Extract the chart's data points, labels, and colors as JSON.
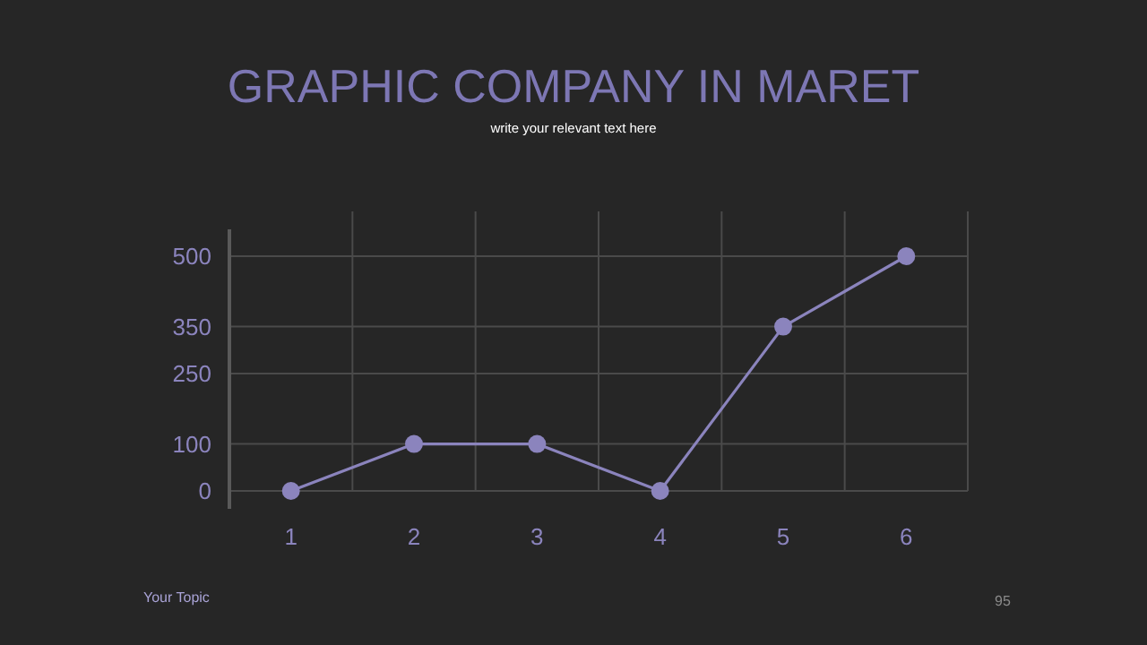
{
  "chart_data": {
    "type": "line",
    "title": "GRAPHIC COMPANY IN MARET",
    "subtitle": "write your relevant text here",
    "categories": [
      "1",
      "2",
      "3",
      "4",
      "5",
      "6"
    ],
    "series": [
      {
        "color": "#8b84bd",
        "values": [
          0,
          100,
          100,
          0,
          350,
          500
        ]
      }
    ],
    "ylim": [
      0,
      500
    ],
    "yticks": [
      0,
      100,
      250,
      350,
      500
    ],
    "grid": true,
    "marker": "circle",
    "line_style": "solid",
    "annotations": [
      "Your Topic",
      "95"
    ]
  }
}
